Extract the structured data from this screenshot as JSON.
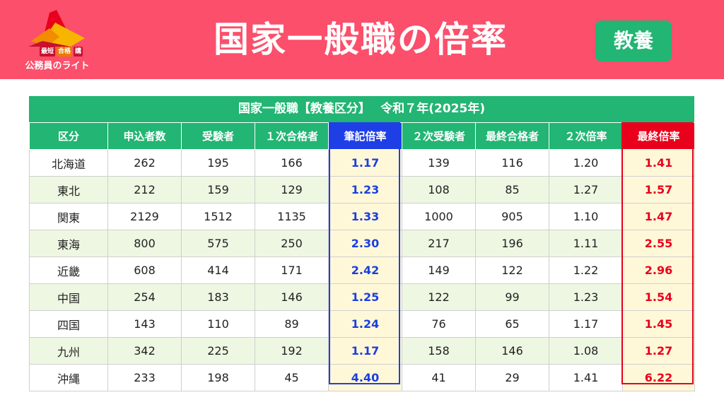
{
  "header": {
    "logo": {
      "badges": [
        "最短",
        "合格",
        "講"
      ],
      "text": "公務員のライト"
    },
    "title": "国家一般職の倍率",
    "tag": "教養"
  },
  "table": {
    "caption": "国家一般職【教養区分】　 令和７年(2025年)",
    "columns": [
      "区分",
      "申込者数",
      "受験者",
      "１次合格者",
      "筆記倍率",
      "２次受験者",
      "最終合格者",
      "２次倍率",
      "最終倍率"
    ],
    "rows": [
      {
        "region": "北海道",
        "applicants": "262",
        "examinees": "195",
        "first_pass": "166",
        "written_ratio": "1.17",
        "second_examinees": "139",
        "final_pass": "116",
        "second_ratio": "1.20",
        "final_ratio": "1.41"
      },
      {
        "region": "東北",
        "applicants": "212",
        "examinees": "159",
        "first_pass": "129",
        "written_ratio": "1.23",
        "second_examinees": "108",
        "final_pass": "85",
        "second_ratio": "1.27",
        "final_ratio": "1.57"
      },
      {
        "region": "関東",
        "applicants": "2129",
        "examinees": "1512",
        "first_pass": "1135",
        "written_ratio": "1.33",
        "second_examinees": "1000",
        "final_pass": "905",
        "second_ratio": "1.10",
        "final_ratio": "1.47"
      },
      {
        "region": "東海",
        "applicants": "800",
        "examinees": "575",
        "first_pass": "250",
        "written_ratio": "2.30",
        "second_examinees": "217",
        "final_pass": "196",
        "second_ratio": "1.11",
        "final_ratio": "2.55"
      },
      {
        "region": "近畿",
        "applicants": "608",
        "examinees": "414",
        "first_pass": "171",
        "written_ratio": "2.42",
        "second_examinees": "149",
        "final_pass": "122",
        "second_ratio": "1.22",
        "final_ratio": "2.96"
      },
      {
        "region": "中国",
        "applicants": "254",
        "examinees": "183",
        "first_pass": "146",
        "written_ratio": "1.25",
        "second_examinees": "122",
        "final_pass": "99",
        "second_ratio": "1.23",
        "final_ratio": "1.54"
      },
      {
        "region": "四国",
        "applicants": "143",
        "examinees": "110",
        "first_pass": "89",
        "written_ratio": "1.24",
        "second_examinees": "76",
        "final_pass": "65",
        "second_ratio": "1.17",
        "final_ratio": "1.45"
      },
      {
        "region": "九州",
        "applicants": "342",
        "examinees": "225",
        "first_pass": "192",
        "written_ratio": "1.17",
        "second_examinees": "158",
        "final_pass": "146",
        "second_ratio": "1.08",
        "final_ratio": "1.27"
      },
      {
        "region": "沖縄",
        "applicants": "233",
        "examinees": "198",
        "first_pass": "45",
        "written_ratio": "4.40",
        "second_examinees": "41",
        "final_pass": "29",
        "second_ratio": "1.41",
        "final_ratio": "6.22"
      }
    ]
  },
  "colors": {
    "banner": "#fb4f6b",
    "green": "#22b573",
    "blue_highlight": "#1f3fe6",
    "red_highlight": "#e8001c",
    "row_tint": "#eef7e2",
    "highlight_cell": "#fff8d8"
  }
}
